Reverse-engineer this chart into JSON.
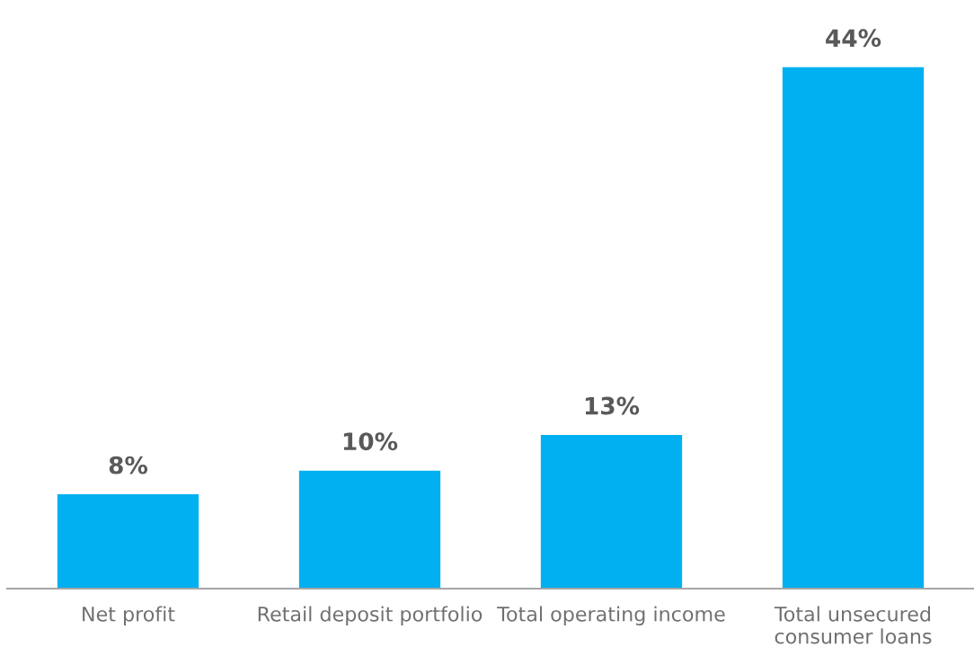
{
  "chart_data": {
    "type": "bar",
    "categories": [
      "Net profit",
      "Retail deposit portfolio",
      "Total operating income",
      "Total unsecured\nconsumer loans"
    ],
    "values": [
      8,
      10,
      13,
      44
    ],
    "value_labels": [
      "8%",
      "10%",
      "13%",
      "44%"
    ],
    "color": "#00b0f0",
    "grid": false,
    "legend": false
  }
}
